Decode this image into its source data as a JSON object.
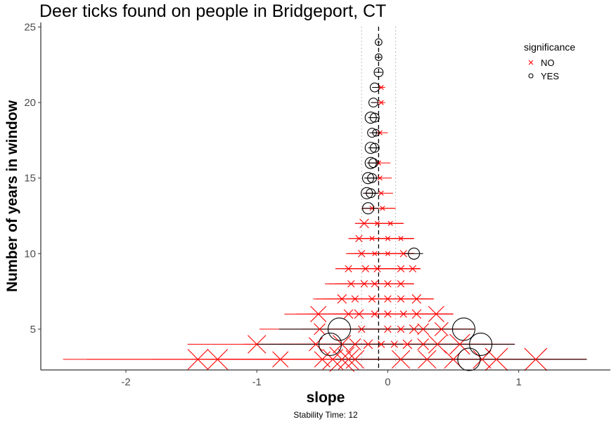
{
  "chart_data": {
    "type": "scatter",
    "title": "Deer ticks found on people in Bridgeport, CT",
    "xlabel": "slope",
    "ylabel": "Number of years in window",
    "caption": "Stability Time: 12",
    "xlim": [
      -2.65,
      1.7
    ],
    "ylim": [
      2.3,
      25.3
    ],
    "x_ticks": [
      -2,
      -1,
      0,
      1
    ],
    "y_ticks": [
      5,
      10,
      15,
      20,
      25
    ],
    "grid": false,
    "reference_lines": {
      "mean_slope": -0.07,
      "dotted_lower": -0.2,
      "dotted_upper": 0.06
    },
    "legend": {
      "title": "significance",
      "placement": "top-right",
      "entries": [
        {
          "label": "NO",
          "shape": "x",
          "color": "#ff0000"
        },
        {
          "label": "YES",
          "shape": "circle",
          "color": "#000000"
        }
      ]
    },
    "colors": {
      "not_significant": "#ff0000",
      "significant": "#000000"
    },
    "series": [
      {
        "name": "NO",
        "points": [
          {
            "y": 3,
            "slope": -1.45,
            "lo": -2.48,
            "hi": -0.42,
            "size": 9
          },
          {
            "y": 3,
            "slope": -1.3,
            "lo": -2.3,
            "hi": -0.3,
            "size": 9
          },
          {
            "y": 3,
            "slope": -0.82,
            "lo": -1.8,
            "hi": 0.2,
            "size": 7
          },
          {
            "y": 3,
            "slope": -0.5,
            "lo": -1.5,
            "hi": 0.5,
            "size": 7
          },
          {
            "y": 3,
            "slope": -0.42,
            "lo": -1.4,
            "hi": 0.6,
            "size": 9
          },
          {
            "y": 3,
            "slope": -0.35,
            "lo": -1.35,
            "hi": 0.65,
            "size": 11
          },
          {
            "y": 3,
            "slope": -0.3,
            "lo": -1.3,
            "hi": 0.7,
            "size": 9
          },
          {
            "y": 3,
            "slope": -0.25,
            "lo": -1.25,
            "hi": 0.75,
            "size": 8
          },
          {
            "y": 3,
            "slope": 0.1,
            "lo": -0.9,
            "hi": 1.1,
            "size": 8
          },
          {
            "y": 3,
            "slope": 0.3,
            "lo": -0.7,
            "hi": 1.3,
            "size": 8
          },
          {
            "y": 3,
            "slope": 0.5,
            "lo": -0.5,
            "hi": 1.5,
            "size": 8
          },
          {
            "y": 3,
            "slope": 0.72,
            "lo": -0.3,
            "hi": 1.52,
            "size": 8
          },
          {
            "y": 3,
            "slope": 0.83,
            "lo": -0.2,
            "hi": 1.52,
            "size": 10
          },
          {
            "y": 3,
            "slope": 1.13,
            "lo": 0.1,
            "hi": 1.52,
            "size": 10
          },
          {
            "y": 4,
            "slope": -1.0,
            "lo": -1.53,
            "hi": -0.47,
            "size": 8
          },
          {
            "y": 4,
            "slope": -0.55,
            "lo": -1.1,
            "hi": 0.0,
            "size": 6
          },
          {
            "y": 4,
            "slope": -0.35,
            "lo": -0.9,
            "hi": 0.2,
            "size": 8
          },
          {
            "y": 4,
            "slope": -0.25,
            "lo": -0.8,
            "hi": 0.3,
            "size": 5
          },
          {
            "y": 4,
            "slope": -0.15,
            "lo": -0.7,
            "hi": 0.4,
            "size": 4
          },
          {
            "y": 4,
            "slope": -0.05,
            "lo": -0.6,
            "hi": 0.5,
            "size": 3
          },
          {
            "y": 4,
            "slope": 0.05,
            "lo": -0.5,
            "hi": 0.6,
            "size": 3
          },
          {
            "y": 4,
            "slope": 0.15,
            "lo": -0.4,
            "hi": 0.7,
            "size": 4
          },
          {
            "y": 4,
            "slope": 0.27,
            "lo": -0.3,
            "hi": 0.8,
            "size": 5
          },
          {
            "y": 4,
            "slope": 0.38,
            "lo": -0.15,
            "hi": 0.97,
            "size": 8
          },
          {
            "y": 4,
            "slope": 0.55,
            "lo": 0.0,
            "hi": 0.97,
            "size": 9
          },
          {
            "y": 5,
            "slope": -0.52,
            "lo": -0.98,
            "hi": -0.06,
            "size": 5
          },
          {
            "y": 5,
            "slope": -0.2,
            "lo": -0.66,
            "hi": 0.26,
            "size": 3
          },
          {
            "y": 5,
            "slope": 0.0,
            "lo": -0.46,
            "hi": 0.46,
            "size": 3
          },
          {
            "y": 5,
            "slope": 0.1,
            "lo": -0.36,
            "hi": 0.56,
            "size": 3
          },
          {
            "y": 5,
            "slope": 0.2,
            "lo": -0.26,
            "hi": 0.66,
            "size": 4
          },
          {
            "y": 5,
            "slope": 0.27,
            "lo": -0.19,
            "hi": 0.66,
            "size": 5
          },
          {
            "y": 5,
            "slope": 0.41,
            "lo": -0.05,
            "hi": 0.66,
            "size": 6
          },
          {
            "y": 6,
            "slope": -0.53,
            "lo": -0.79,
            "hi": 0.5,
            "size": 7
          },
          {
            "y": 6,
            "slope": -0.3,
            "lo": -0.7,
            "hi": 0.3,
            "size": 4
          },
          {
            "y": 6,
            "slope": -0.22,
            "lo": -0.6,
            "hi": 0.4,
            "size": 4
          },
          {
            "y": 6,
            "slope": -0.1,
            "lo": -0.5,
            "hi": 0.45,
            "size": 3
          },
          {
            "y": 6,
            "slope": 0.0,
            "lo": -0.45,
            "hi": 0.5,
            "size": 3
          },
          {
            "y": 6,
            "slope": 0.12,
            "lo": -0.4,
            "hi": 0.5,
            "size": 3
          },
          {
            "y": 6,
            "slope": 0.22,
            "lo": -0.3,
            "hi": 0.5,
            "size": 4
          },
          {
            "y": 6,
            "slope": 0.37,
            "lo": -0.1,
            "hi": 0.5,
            "size": 7
          },
          {
            "y": 7,
            "slope": -0.35,
            "lo": -0.57,
            "hi": 0.35,
            "size": 4
          },
          {
            "y": 7,
            "slope": -0.25,
            "lo": -0.55,
            "hi": 0.3,
            "size": 3
          },
          {
            "y": 7,
            "slope": -0.12,
            "lo": -0.5,
            "hi": 0.3,
            "size": 3
          },
          {
            "y": 7,
            "slope": 0.0,
            "lo": -0.45,
            "hi": 0.35,
            "size": 3
          },
          {
            "y": 7,
            "slope": 0.1,
            "lo": -0.4,
            "hi": 0.35,
            "size": 3
          },
          {
            "y": 7,
            "slope": 0.22,
            "lo": -0.3,
            "hi": 0.35,
            "size": 4
          },
          {
            "y": 8,
            "slope": -0.28,
            "lo": -0.48,
            "hi": 0.18,
            "size": 3
          },
          {
            "y": 8,
            "slope": -0.18,
            "lo": -0.45,
            "hi": 0.2,
            "size": 3
          },
          {
            "y": 8,
            "slope": -0.1,
            "lo": -0.4,
            "hi": 0.2,
            "size": 3
          },
          {
            "y": 8,
            "slope": 0.0,
            "lo": -0.35,
            "hi": 0.2,
            "size": 3
          },
          {
            "y": 8,
            "slope": 0.1,
            "lo": -0.3,
            "hi": 0.2,
            "size": 3
          },
          {
            "y": 9,
            "slope": -0.3,
            "lo": -0.4,
            "hi": 0.25,
            "size": 3
          },
          {
            "y": 9,
            "slope": -0.17,
            "lo": -0.4,
            "hi": 0.25,
            "size": 3
          },
          {
            "y": 9,
            "slope": -0.08,
            "lo": -0.35,
            "hi": 0.25,
            "size": 3
          },
          {
            "y": 9,
            "slope": 0.1,
            "lo": -0.3,
            "hi": 0.25,
            "size": 3
          },
          {
            "y": 9,
            "slope": 0.19,
            "lo": -0.2,
            "hi": 0.25,
            "size": 3
          },
          {
            "y": 10,
            "slope": -0.2,
            "lo": -0.32,
            "hi": 0.2,
            "size": 3
          },
          {
            "y": 10,
            "slope": -0.1,
            "lo": -0.3,
            "hi": 0.2,
            "size": 2
          },
          {
            "y": 10,
            "slope": 0.0,
            "lo": -0.25,
            "hi": 0.2,
            "size": 2
          },
          {
            "y": 10,
            "slope": 0.12,
            "lo": -0.2,
            "hi": 0.2,
            "size": 3
          },
          {
            "y": 11,
            "slope": -0.22,
            "lo": -0.3,
            "hi": 0.2,
            "size": 3
          },
          {
            "y": 11,
            "slope": -0.12,
            "lo": -0.3,
            "hi": 0.2,
            "size": 2
          },
          {
            "y": 11,
            "slope": 0.0,
            "lo": -0.25,
            "hi": 0.2,
            "size": 2
          },
          {
            "y": 11,
            "slope": 0.1,
            "lo": -0.2,
            "hi": 0.2,
            "size": 2
          },
          {
            "y": 12,
            "slope": -0.18,
            "lo": -0.25,
            "hi": 0.12,
            "size": 4
          },
          {
            "y": 12,
            "slope": -0.08,
            "lo": -0.25,
            "hi": 0.12,
            "size": 2
          },
          {
            "y": 12,
            "slope": 0.02,
            "lo": -0.2,
            "hi": 0.12,
            "size": 2
          },
          {
            "y": 13,
            "slope": -0.12,
            "lo": -0.2,
            "hi": 0.06,
            "size": 2
          },
          {
            "y": 13,
            "slope": -0.04,
            "lo": -0.2,
            "hi": 0.06,
            "size": 2
          },
          {
            "y": 14,
            "slope": -0.05,
            "lo": -0.18,
            "hi": 0.04,
            "size": 2
          },
          {
            "y": 15,
            "slope": -0.06,
            "lo": -0.17,
            "hi": 0.03,
            "size": 2
          },
          {
            "y": 16,
            "slope": -0.07,
            "lo": -0.15,
            "hi": 0.02,
            "size": 2
          },
          {
            "y": 18,
            "slope": -0.06,
            "lo": -0.12,
            "hi": 0.0,
            "size": 2
          },
          {
            "y": 20,
            "slope": -0.05,
            "lo": -0.12,
            "hi": -0.02,
            "size": 2
          },
          {
            "y": 21,
            "slope": -0.05,
            "lo": -0.1,
            "hi": -0.02,
            "size": 2
          }
        ]
      },
      {
        "name": "YES",
        "points": [
          {
            "y": 3,
            "slope": 0.62,
            "lo": -0.4,
            "hi": 1.52,
            "size": 10
          },
          {
            "y": 4,
            "slope": -0.44,
            "lo": -1.0,
            "hi": 0.12,
            "size": 10
          },
          {
            "y": 4,
            "slope": 0.71,
            "lo": 0.15,
            "hi": 0.97,
            "size": 10
          },
          {
            "y": 5,
            "slope": -0.37,
            "lo": -0.83,
            "hi": 0.09,
            "size": 10
          },
          {
            "y": 5,
            "slope": 0.58,
            "lo": 0.12,
            "hi": 0.66,
            "size": 10
          },
          {
            "y": 10,
            "slope": 0.2,
            "lo": 0.12,
            "hi": 0.27,
            "size": 5
          },
          {
            "y": 13,
            "slope": -0.15,
            "lo": -0.19,
            "hi": -0.07,
            "size": 5
          },
          {
            "y": 14,
            "slope": -0.16,
            "lo": -0.19,
            "hi": -0.08,
            "size": 5
          },
          {
            "y": 14,
            "slope": -0.13,
            "lo": -0.17,
            "hi": -0.07,
            "size": 4
          },
          {
            "y": 15,
            "slope": -0.15,
            "lo": -0.18,
            "hi": -0.08,
            "size": 5
          },
          {
            "y": 15,
            "slope": -0.12,
            "lo": -0.16,
            "hi": -0.07,
            "size": 4
          },
          {
            "y": 16,
            "slope": -0.13,
            "lo": -0.16,
            "hi": -0.08,
            "size": 5
          },
          {
            "y": 16,
            "slope": -0.11,
            "lo": -0.14,
            "hi": -0.07,
            "size": 4
          },
          {
            "y": 17,
            "slope": -0.13,
            "lo": -0.15,
            "hi": -0.08,
            "size": 5
          },
          {
            "y": 17,
            "slope": -0.1,
            "lo": -0.14,
            "hi": -0.07,
            "size": 4
          },
          {
            "y": 18,
            "slope": -0.12,
            "lo": -0.14,
            "hi": -0.08,
            "size": 4
          },
          {
            "y": 18,
            "slope": -0.09,
            "lo": -0.12,
            "hi": -0.07,
            "size": 3
          },
          {
            "y": 19,
            "slope": -0.13,
            "lo": -0.15,
            "hi": -0.08,
            "size": 5
          },
          {
            "y": 19,
            "slope": -0.1,
            "lo": -0.13,
            "hi": -0.07,
            "size": 4
          },
          {
            "y": 20,
            "slope": -0.11,
            "lo": -0.13,
            "hi": -0.08,
            "size": 4
          },
          {
            "y": 21,
            "slope": -0.1,
            "lo": -0.12,
            "hi": -0.07,
            "size": 4
          },
          {
            "y": 22,
            "slope": -0.07,
            "lo": -0.1,
            "hi": -0.04,
            "size": 4
          },
          {
            "y": 23,
            "slope": -0.07,
            "lo": -0.09,
            "hi": -0.05,
            "size": 3
          },
          {
            "y": 24,
            "slope": -0.07,
            "lo": -0.08,
            "hi": -0.06,
            "size": 3
          }
        ]
      }
    ]
  }
}
